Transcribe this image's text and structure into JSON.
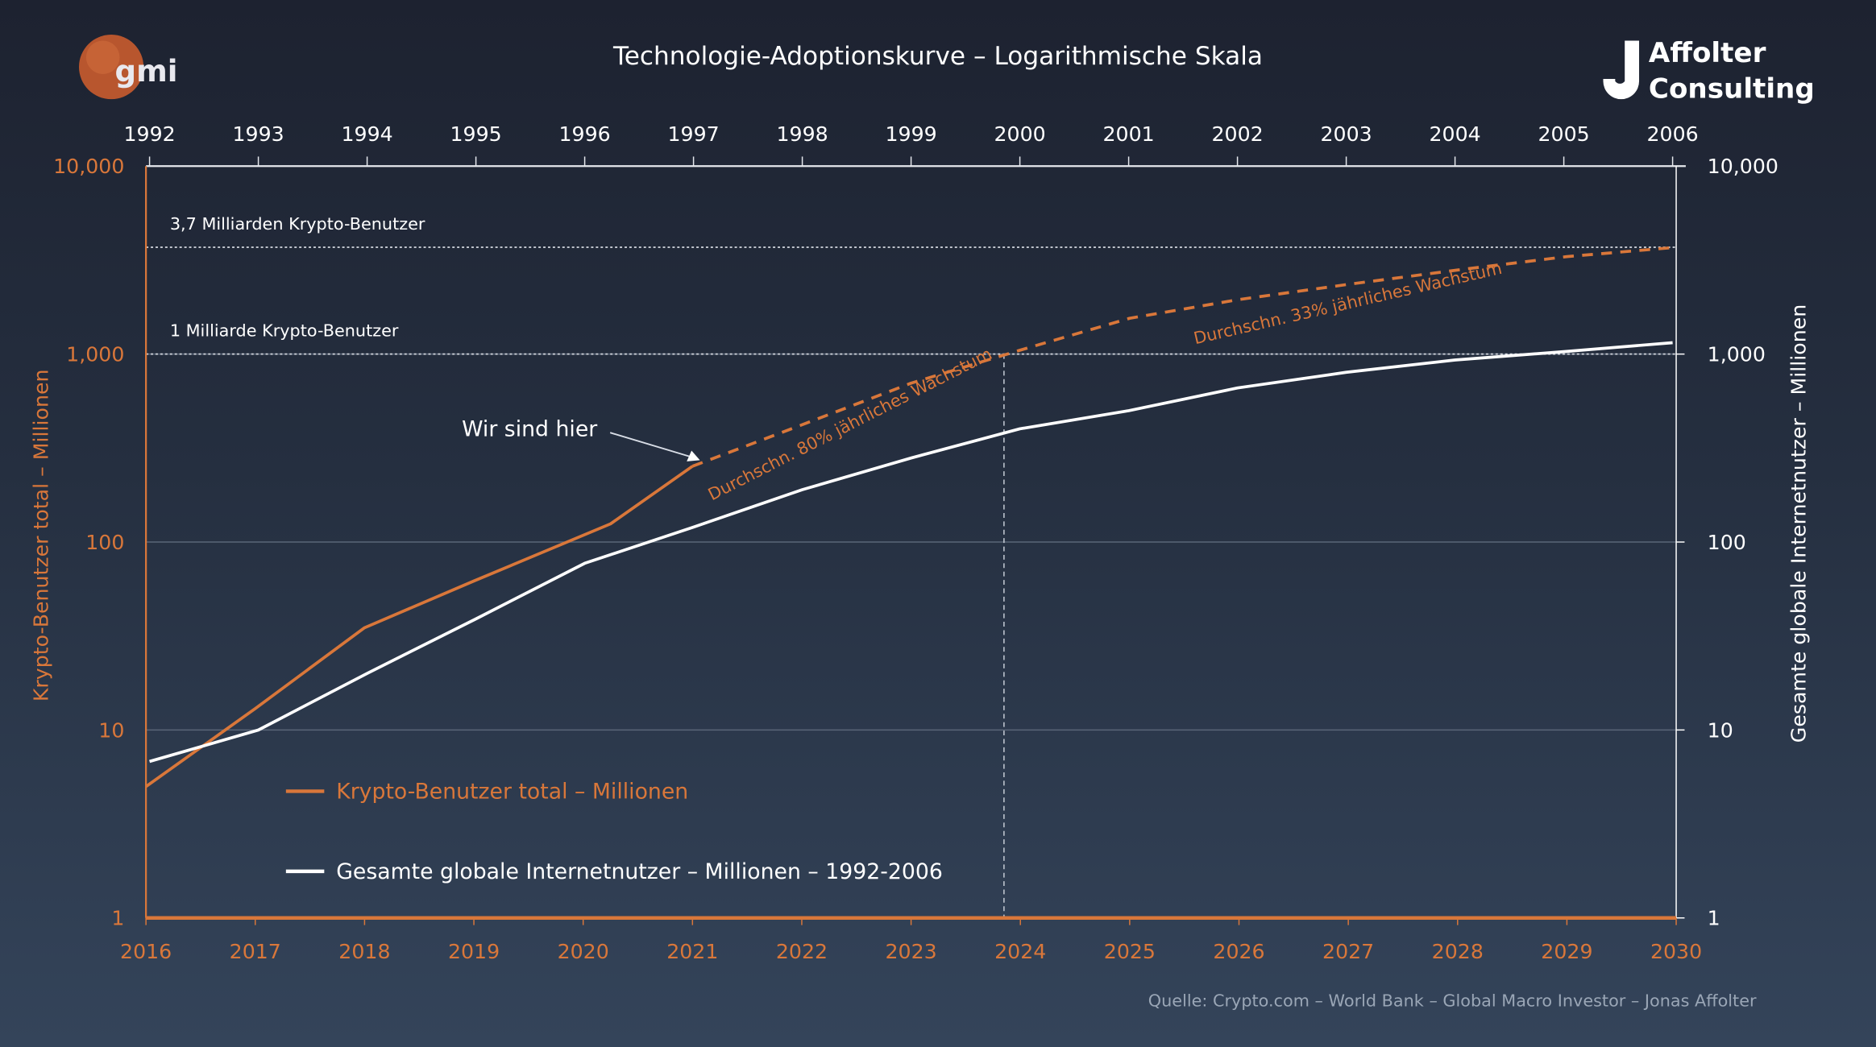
{
  "title": "Technologie-Adoptionskurve – Logarithmische Skala",
  "logos": {
    "left": "gmi",
    "right_line1": "Affolter",
    "right_line2": "Consulting",
    "right_mark": "J"
  },
  "source": "Quelle: Crypto.com – World Bank – Global Macro Investor – Jonas Affolter",
  "colors": {
    "crypto": "#d9773a",
    "internet": "#ffffff",
    "background_top": "#1d2230",
    "background_bottom": "#34445a"
  },
  "chart_data": {
    "type": "line",
    "title": "Technologie-Adoptionskurve – Logarithmische Skala",
    "y_scale": "log",
    "ylim": [
      1,
      10000
    ],
    "grid": true,
    "legend_placement": "bottom-left",
    "y_ticks": [
      "1",
      "10",
      "100",
      "1,000",
      "10,000"
    ],
    "y_tick_values": [
      1,
      10,
      100,
      1000,
      10000
    ],
    "ylabel_left": "Krypto-Benutzer total – Millionen",
    "ylabel_right": "Gesamte globale Internetnutzer – Millionen",
    "x_bottom": {
      "range": [
        2016,
        2030
      ],
      "ticks": [
        "2016",
        "2017",
        "2018",
        "2019",
        "2020",
        "2021",
        "2022",
        "2023",
        "2024",
        "2025",
        "2026",
        "2027",
        "2028",
        "2029",
        "2030"
      ]
    },
    "x_top": {
      "range": [
        1992,
        2006
      ],
      "ticks": [
        "1992",
        "1993",
        "1994",
        "1995",
        "1996",
        "1997",
        "1998",
        "1999",
        "2000",
        "2001",
        "2002",
        "2003",
        "2004",
        "2005",
        "2006"
      ]
    },
    "series": [
      {
        "name": "Krypto-Benutzer total – Millionen",
        "axis": "bottom",
        "style": "solid",
        "x": [
          2016,
          2017,
          2018,
          2019,
          2020.25,
          2021
        ],
        "y": [
          5,
          13,
          35,
          62,
          125,
          253
        ]
      },
      {
        "name": "",
        "axis": "bottom",
        "style": "dashed",
        "x": [
          2021,
          2022,
          2023,
          2024,
          2025,
          2026,
          2027,
          2028,
          2029,
          2030
        ],
        "y": [
          253,
          420,
          700,
          1050,
          1550,
          1950,
          2350,
          2800,
          3300,
          3700
        ]
      },
      {
        "name": "Gesamte globale Internetnutzer – Millionen – 1992-2006",
        "axis": "top",
        "style": "solid",
        "x": [
          1992,
          1993,
          1994,
          1995,
          1996,
          1997,
          1998,
          1999,
          2000,
          2001,
          2002,
          2003,
          2004,
          2005,
          2006
        ],
        "y": [
          6.8,
          10,
          20,
          39,
          77,
          120,
          190,
          280,
          400,
          500,
          660,
          800,
          930,
          1030,
          1150
        ]
      }
    ],
    "reference_lines": [
      {
        "y": 3700,
        "label": "3,7 Milliarden Krypto-Benutzer"
      },
      {
        "y": 1000,
        "label": "1 Milliarde Krypto-Benutzer"
      }
    ],
    "vertical_line": {
      "x": 2023.85
    },
    "annotations": [
      {
        "text": "Wir sind hier",
        "points_to": {
          "x": 2021,
          "y": 253
        }
      },
      {
        "text": "Durchschn. 80% jährliches Wachstum"
      },
      {
        "text": "Durchschn. 33% jährliches Wachstum"
      }
    ]
  }
}
